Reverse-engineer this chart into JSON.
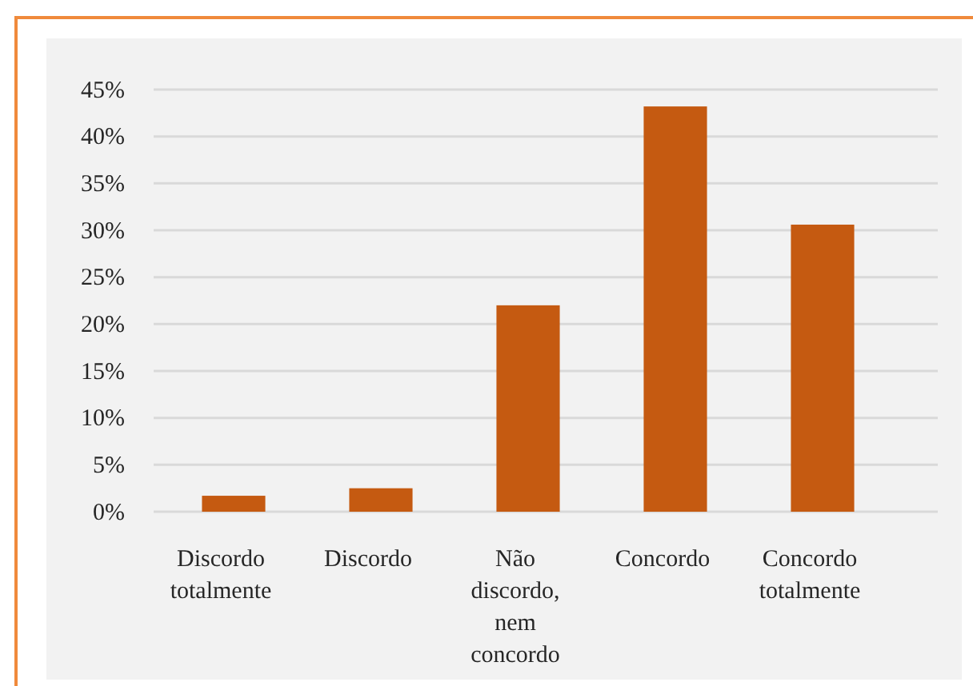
{
  "chart_data": {
    "type": "bar",
    "categories": [
      "Discordo totalmente",
      "Discordo",
      "Não discordo, nem concordo",
      "Concordo",
      "Concordo totalmente"
    ],
    "values": [
      1.7,
      2.5,
      22.0,
      43.2,
      30.6
    ],
    "color": "#c55a11",
    "ylim": [
      0,
      45
    ],
    "yticks": [
      {
        "value": 0,
        "label": "0%"
      },
      {
        "value": 5,
        "label": "5%"
      },
      {
        "value": 10,
        "label": "10%"
      },
      {
        "value": 15,
        "label": "15%"
      },
      {
        "value": 20,
        "label": "20%"
      },
      {
        "value": 25,
        "label": "25%"
      },
      {
        "value": 30,
        "label": "30%"
      },
      {
        "value": 35,
        "label": "35%"
      },
      {
        "value": 40,
        "label": "40%"
      },
      {
        "value": 45,
        "label": "45%"
      }
    ],
    "grid": "y"
  }
}
